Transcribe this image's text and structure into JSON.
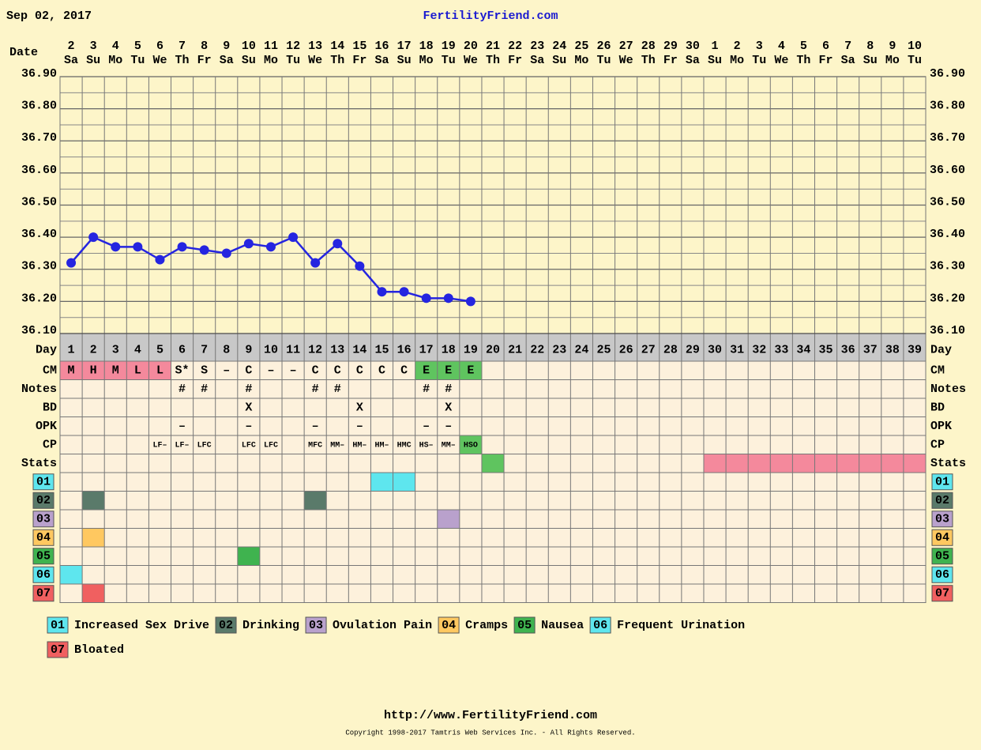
{
  "header": {
    "date": "Sep 02, 2017",
    "site": "FertilityFriend.com"
  },
  "chart_data": {
    "type": "line",
    "x_label": "Date",
    "categories": [
      "2",
      "3",
      "4",
      "5",
      "6",
      "7",
      "8",
      "9",
      "10",
      "11",
      "12",
      "13",
      "14",
      "15",
      "16",
      "17",
      "18",
      "19",
      "20",
      "21",
      "22",
      "23",
      "24",
      "25",
      "26",
      "27",
      "28",
      "29",
      "30",
      "1",
      "2",
      "3",
      "4",
      "5",
      "6",
      "7",
      "8",
      "9",
      "10"
    ],
    "weekdays": [
      "Sa",
      "Su",
      "Mo",
      "Tu",
      "We",
      "Th",
      "Fr",
      "Sa",
      "Su",
      "Mo",
      "Tu",
      "We",
      "Th",
      "Fr",
      "Sa",
      "Su",
      "Mo",
      "Tu",
      "We",
      "Th",
      "Fr",
      "Sa",
      "Su",
      "Mo",
      "Tu",
      "We",
      "Th",
      "Fr",
      "Sa",
      "Su",
      "Mo",
      "Tu",
      "We",
      "Th",
      "Fr",
      "Sa",
      "Su",
      "Mo",
      "Tu"
    ],
    "values": [
      36.32,
      36.4,
      36.37,
      36.37,
      36.33,
      36.37,
      36.36,
      36.35,
      36.38,
      36.37,
      36.4,
      36.32,
      36.38,
      36.31,
      36.23,
      36.23,
      36.21,
      36.21,
      36.2,
      null,
      null,
      null,
      null,
      null,
      null,
      null,
      null,
      null,
      null,
      null,
      null,
      null,
      null,
      null,
      null,
      null,
      null,
      null,
      null
    ],
    "color": "#2525e0",
    "ylim": [
      36.1,
      36.9
    ],
    "yticks": [
      {
        "value": 36.1,
        "label": "36.10"
      },
      {
        "value": 36.2,
        "label": "36.20"
      },
      {
        "value": 36.3,
        "label": "36.30"
      },
      {
        "value": 36.4,
        "label": "36.40"
      },
      {
        "value": 36.5,
        "label": "36.50"
      },
      {
        "value": 36.6,
        "label": "36.60"
      },
      {
        "value": 36.7,
        "label": "36.70"
      },
      {
        "value": 36.8,
        "label": "36.80"
      },
      {
        "value": 36.9,
        "label": "36.90"
      }
    ],
    "minor_yticks": [
      36.15,
      36.25,
      36.35,
      36.45,
      36.55,
      36.65,
      36.75,
      36.85
    ],
    "grid": true
  },
  "rows": {
    "day": {
      "label": "Day",
      "values": [
        1,
        2,
        3,
        4,
        5,
        6,
        7,
        8,
        9,
        10,
        11,
        12,
        13,
        14,
        15,
        16,
        17,
        18,
        19,
        20,
        21,
        22,
        23,
        24,
        25,
        26,
        27,
        28,
        29,
        30,
        31,
        32,
        33,
        34,
        35,
        36,
        37,
        38,
        39
      ]
    },
    "cm": {
      "label": "CM",
      "values": [
        "M",
        "H",
        "M",
        "L",
        "L",
        "S*",
        "S",
        "–",
        "C",
        "–",
        "–",
        "C",
        "C",
        "C",
        "C",
        "C",
        "E",
        "E",
        "E"
      ],
      "colors": [
        "#f4899c",
        "#f4899c",
        "#f4899c",
        "#f4899c",
        "#f4899c",
        null,
        null,
        null,
        null,
        null,
        null,
        null,
        null,
        null,
        null,
        null,
        "#5fc45f",
        "#5fc45f",
        "#5fc45f"
      ]
    },
    "notes": {
      "label": "Notes",
      "values": [
        null,
        null,
        null,
        null,
        null,
        "#",
        "#",
        null,
        "#",
        null,
        null,
        "#",
        "#",
        null,
        null,
        null,
        "#",
        "#"
      ]
    },
    "bd": {
      "label": "BD",
      "values": [
        null,
        null,
        null,
        null,
        null,
        null,
        null,
        null,
        "X",
        null,
        null,
        null,
        null,
        "X",
        null,
        null,
        null,
        "X"
      ]
    },
    "opk": {
      "label": "OPK",
      "values": [
        null,
        null,
        null,
        null,
        null,
        "–",
        null,
        null,
        "–",
        null,
        null,
        "–",
        null,
        "–",
        null,
        null,
        "–",
        "–"
      ]
    },
    "cp": {
      "label": "CP",
      "values": [
        null,
        null,
        null,
        null,
        "LF–",
        "LF–",
        "LFC",
        null,
        "LFC",
        "LFC",
        null,
        "MFC",
        "MM–",
        "HM–",
        "HM–",
        "HMC",
        "HS–",
        "MM–",
        "HSO"
      ],
      "colors": [
        null,
        null,
        null,
        null,
        null,
        null,
        null,
        null,
        null,
        null,
        null,
        null,
        null,
        null,
        null,
        null,
        null,
        null,
        "#5fc45f"
      ]
    },
    "stats": {
      "label": "Stats",
      "highlights": [
        {
          "color": "#5fc45f",
          "days": [
            20
          ]
        },
        {
          "color": "#f4899c",
          "days": [
            30,
            31,
            32,
            33,
            34,
            35,
            36,
            37,
            38,
            39
          ]
        }
      ]
    }
  },
  "symptoms": [
    {
      "code": "01",
      "label": "Increased Sex Drive",
      "color": "#5ee6ee",
      "days": [
        15,
        16
      ]
    },
    {
      "code": "02",
      "label": "Drinking",
      "color": "#5a7a6a",
      "days": [
        2,
        12
      ]
    },
    {
      "code": "03",
      "label": "Ovulation Pain",
      "color": "#b9a1cc",
      "days": [
        18
      ]
    },
    {
      "code": "04",
      "label": "Cramps",
      "color": "#ffc860",
      "days": [
        2
      ]
    },
    {
      "code": "05",
      "label": "Nausea",
      "color": "#3fb34f",
      "days": [
        9
      ]
    },
    {
      "code": "06",
      "label": "Frequent Urination",
      "color": "#5ee6ee",
      "days": [
        1
      ]
    },
    {
      "code": "07",
      "label": "Bloated",
      "color": "#f06060",
      "days": [
        2
      ]
    }
  ],
  "footer": {
    "url": "http://www.FertilityFriend.com",
    "copyright": "Copyright 1998-2017 Tamtris Web Services Inc. - All Rights Reserved."
  }
}
